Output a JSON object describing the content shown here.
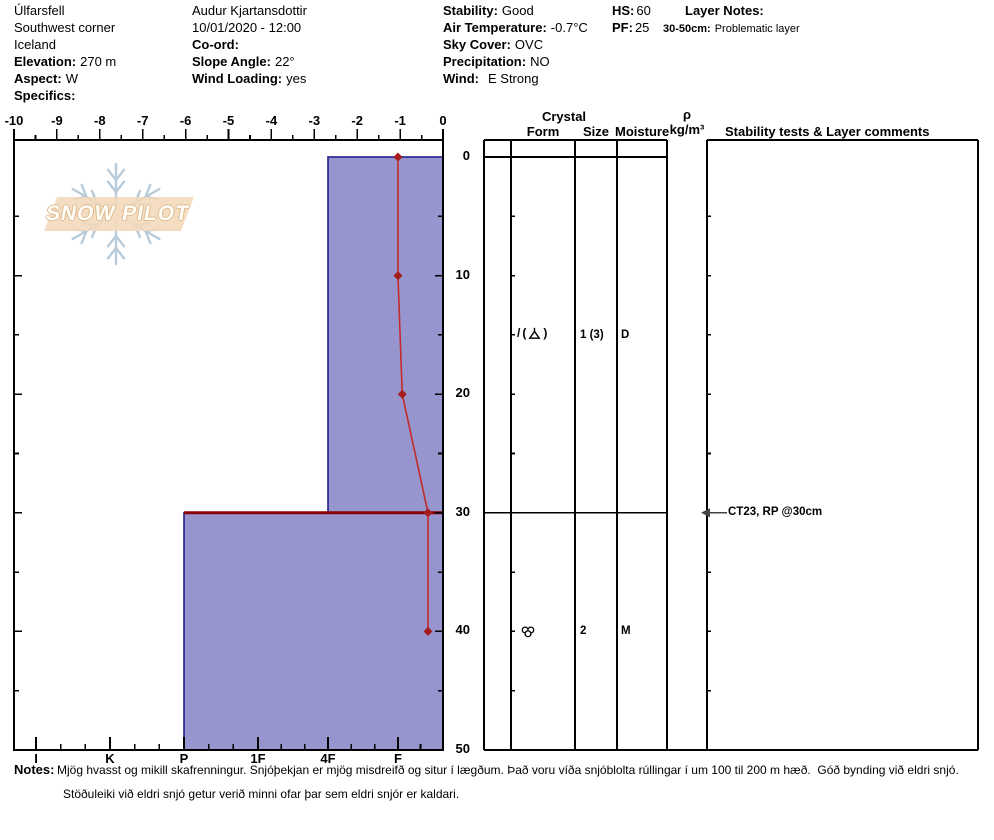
{
  "header": {
    "col1": {
      "title": "Úlfarsfell",
      "subtitle": "Southwest corner",
      "region": "Iceland",
      "elevation_label": "Elevation:",
      "elevation": "270 m",
      "aspect_label": "Aspect:",
      "aspect": "W",
      "specifics_label": "Specifics:"
    },
    "col2": {
      "observer": "Audur Kjartansdottir",
      "datetime": "10/01/2020 - 12:00",
      "coord_label": "Co-ord:",
      "slope_angle_label": "Slope Angle:",
      "slope_angle": "22°",
      "wind_loading_label": "Wind Loading:",
      "wind_loading": "yes"
    },
    "col3": {
      "stability_label": "Stability:",
      "stability": "Good",
      "air_temp_label": "Air Temperature:",
      "air_temp": "-0.7°C",
      "sky_label": "Sky Cover:",
      "sky": "OVC",
      "precip_label": "Precipitation:",
      "precip": "NO",
      "wind_label": "Wind:",
      "wind": "E Strong"
    },
    "col4": {
      "hs_label": "HS:",
      "hs": "60",
      "pf_label": "PF:",
      "pf": "25"
    },
    "col5": {
      "layer_notes_label": "Layer Notes:",
      "range_label": "30-50cm:",
      "range_text": "Problematic layer"
    }
  },
  "logo": {
    "text": "SNOW PILOT"
  },
  "chart_data": {
    "type": "snow-profile",
    "title": "Snow pit profile: hardness layers with temperature trace",
    "temperature_axis": {
      "unit": "°C",
      "min": -10,
      "max": 0,
      "tick_labels": [
        "-10",
        "-9",
        "-8",
        "-7",
        "-6",
        "-5",
        "-4",
        "-3",
        "-2",
        "-1",
        "0"
      ]
    },
    "depth_axis": {
      "unit": "cm",
      "max": 50,
      "tick_labels": [
        "0",
        "10",
        "20",
        "30",
        "40",
        "50"
      ]
    },
    "hardness_axis": {
      "categories": [
        "I",
        "K",
        "P",
        "1F",
        "4F",
        "F"
      ]
    },
    "temperature_profile": [
      {
        "depth_cm": 0,
        "temp_c": -1.05
      },
      {
        "depth_cm": 10,
        "temp_c": -1.05
      },
      {
        "depth_cm": 20,
        "temp_c": -0.95
      },
      {
        "depth_cm": 30,
        "temp_c": -0.35
      },
      {
        "depth_cm": 40,
        "temp_c": -0.35
      }
    ],
    "layers": [
      {
        "top_cm": 0,
        "bottom_cm": 30,
        "hardness": "4F",
        "problematic_top": false
      },
      {
        "top_cm": 30,
        "bottom_cm": 50,
        "hardness": "P",
        "problematic_top": true
      }
    ],
    "colors": {
      "layer_fill": "#9795ce",
      "layer_border": "#1f1f8f",
      "temp_line": "#c42b2b",
      "temp_marker": "#a51c1c",
      "problem_layer_line": "#8b0000"
    }
  },
  "table": {
    "headers": {
      "crystal": "Crystal",
      "form": "Form",
      "size": "Size",
      "moisture": "Moisture",
      "density_symbol": "ρ",
      "density_unit": "kg/m³",
      "comments": "Stability tests & Layer comments"
    },
    "rows": [
      {
        "form_primary": "/",
        "paren_open": "(",
        "paren_close": ")",
        "form_secondary": "stellar",
        "size": "1 (3)",
        "moisture": "D"
      },
      {
        "form_symbol": "melt-form-clusters",
        "size": "2",
        "moisture": "M"
      }
    ],
    "annotations": [
      {
        "depth_cm": 30,
        "text": "CT23, RP @30cm"
      }
    ]
  },
  "notes": {
    "label": "Notes:",
    "line1": "Mjög hvasst og mikill skafrenningur. Snjóþekjan er mjög misdreifð og situr í lægðum. Það voru víða snjóblolta rúllingar í um 100 til 200 m hæð.  Góð bynding við eldri snjó.",
    "line2": "Stöðuleiki við eldri snjó getur verið minni ofar þar sem eldri snjór er kaldari."
  }
}
